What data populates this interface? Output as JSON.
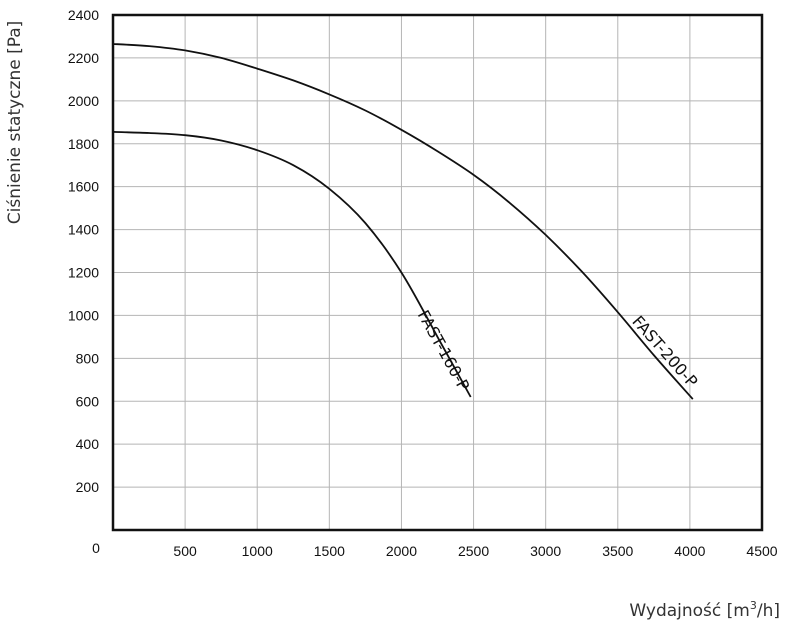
{
  "chart_data": {
    "type": "line",
    "title": "",
    "xlabel_main": "Wydajność [m",
    "xlabel_sup": "3",
    "xlabel_tail": "/h]",
    "ylabel": "Ciśnienie statyczne [Pa]",
    "xlim": [
      0,
      4500
    ],
    "ylim": [
      0,
      2400
    ],
    "x_ticks": [
      500,
      1000,
      1500,
      2000,
      2500,
      3000,
      3500,
      4000,
      4500
    ],
    "y_ticks": [
      200,
      400,
      600,
      800,
      1000,
      1200,
      1400,
      1600,
      1800,
      2000,
      2200,
      2400
    ],
    "origin_label": "0",
    "grid": true,
    "series": [
      {
        "name": "FAST-160-P",
        "x": [
          0,
          250,
          500,
          750,
          1000,
          1250,
          1500,
          1750,
          2000,
          2250,
          2480
        ],
        "y": [
          1855,
          1850,
          1840,
          1815,
          1770,
          1700,
          1590,
          1430,
          1200,
          900,
          620
        ]
      },
      {
        "name": "FAST-200-P",
        "x": [
          0,
          250,
          500,
          750,
          1000,
          1250,
          1500,
          1750,
          2000,
          2250,
          2500,
          2750,
          3000,
          3250,
          3500,
          3750,
          4020
        ],
        "y": [
          2265,
          2255,
          2235,
          2200,
          2150,
          2095,
          2030,
          1955,
          1865,
          1765,
          1655,
          1525,
          1375,
          1205,
          1015,
          815,
          610
        ]
      }
    ]
  }
}
